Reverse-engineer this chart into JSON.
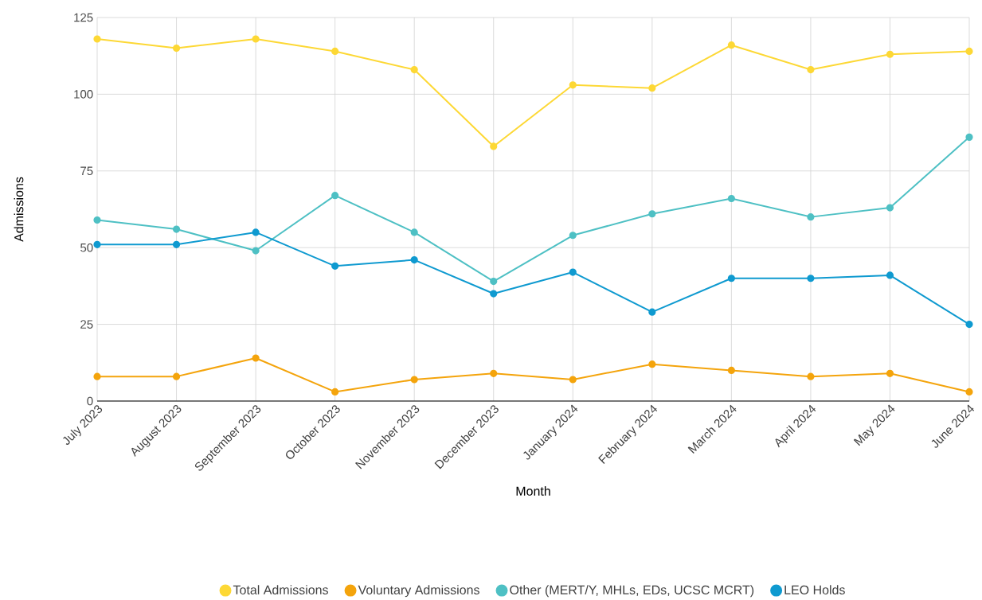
{
  "chart_data": {
    "type": "line",
    "xlabel": "Month",
    "ylabel": "Admissions",
    "categories": [
      "July 2023",
      "August 2023",
      "September 2023",
      "October 2023",
      "November 2023",
      "December 2023",
      "January 2024",
      "February 2024",
      "March 2024",
      "April 2024",
      "May 2024",
      "June 2024"
    ],
    "series": [
      {
        "name": "Total Admissions",
        "color": "#fdd835",
        "values": [
          118,
          115,
          118,
          114,
          108,
          83,
          103,
          102,
          116,
          108,
          113,
          114
        ]
      },
      {
        "name": "Voluntary Admissions",
        "color": "#f4a40c",
        "values": [
          8,
          8,
          14,
          3,
          7,
          9,
          7,
          12,
          10,
          8,
          9,
          3
        ]
      },
      {
        "name": "Other (MERT/Y, MHLs, EDs, UCSC MCRT)",
        "color": "#4ec0c4",
        "values": [
          59,
          56,
          49,
          67,
          55,
          39,
          54,
          61,
          66,
          60,
          63,
          86
        ]
      },
      {
        "name": "LEO Holds",
        "color": "#0f9ad0",
        "values": [
          51,
          51,
          55,
          44,
          46,
          35,
          42,
          29,
          40,
          40,
          41,
          25
        ]
      }
    ],
    "ylim": [
      0,
      125
    ],
    "yticks": [
      0,
      25,
      50,
      75,
      100,
      125
    ],
    "grid": true,
    "legend": "bottom",
    "marker": "circle",
    "line_style": "solid"
  }
}
